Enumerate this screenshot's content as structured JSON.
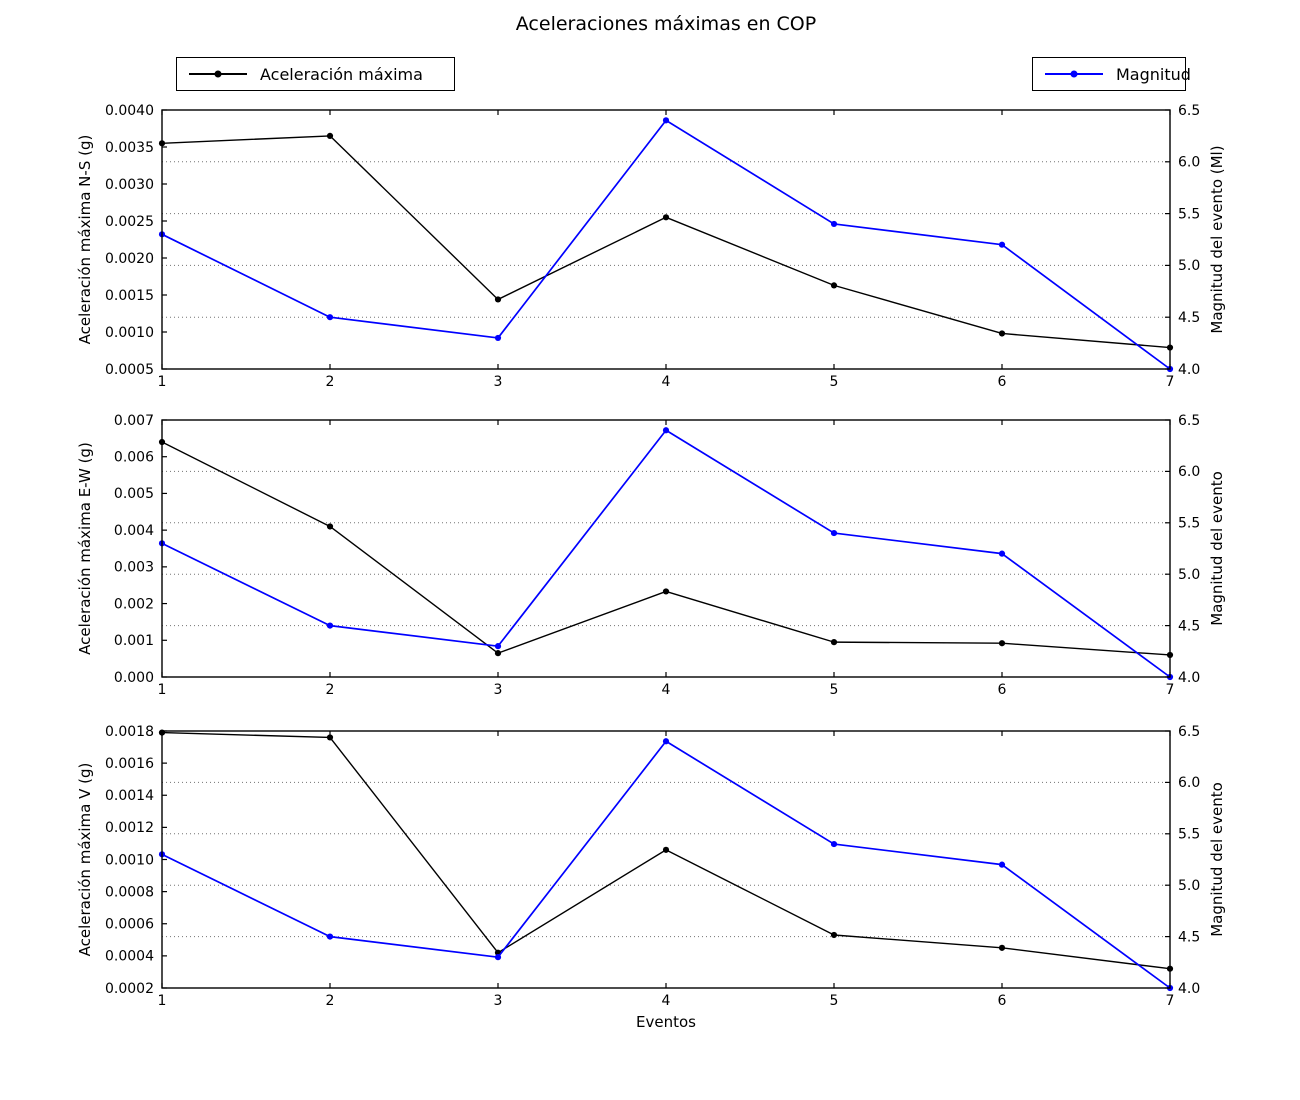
{
  "title": "Aceleraciones máximas en COP",
  "xlabel": "Eventos",
  "legend": {
    "accel_label": "Aceleración máxima",
    "magnitud_label": "Magnitud"
  },
  "colors": {
    "accel": "#000000",
    "magnitud": "#0000ff",
    "grid": "#000000"
  },
  "chart_data": [
    {
      "id": "ns",
      "type": "line",
      "x": [
        1,
        2,
        3,
        4,
        5,
        6,
        7
      ],
      "xtick_labels": [
        "1",
        "2",
        "3",
        "4",
        "5",
        "6",
        "7"
      ],
      "ylabel": "Aceleración máxima N-S (g)",
      "y2label": "Magnitud del evento (Ml)",
      "ylim": [
        0.0005,
        0.004
      ],
      "yticks": [
        0.0005,
        0.001,
        0.0015,
        0.002,
        0.0025,
        0.003,
        0.0035,
        0.004
      ],
      "ytick_labels": [
        "0.0005",
        "0.0010",
        "0.0015",
        "0.0020",
        "0.0025",
        "0.0030",
        "0.0035",
        "0.0040"
      ],
      "y2lim": [
        4.0,
        6.5
      ],
      "y2ticks": [
        4.0,
        4.5,
        5.0,
        5.5,
        6.0,
        6.5
      ],
      "y2tick_labels": [
        "4.0",
        "4.5",
        "5.0",
        "5.5",
        "6.0",
        "6.5"
      ],
      "grid_y2": [
        4.5,
        5.0,
        5.5,
        6.0
      ],
      "series": [
        {
          "name": "Aceleración máxima",
          "axis": "left",
          "color": "#000000",
          "values": [
            0.00355,
            0.00365,
            0.00144,
            0.00255,
            0.00163,
            0.00098,
            0.00079
          ]
        },
        {
          "name": "Magnitud",
          "axis": "right",
          "color": "#0000ff",
          "values": [
            5.3,
            4.5,
            4.3,
            6.4,
            5.4,
            5.2,
            4.0
          ]
        }
      ]
    },
    {
      "id": "ew",
      "type": "line",
      "x": [
        1,
        2,
        3,
        4,
        5,
        6,
        7
      ],
      "xtick_labels": [
        "1",
        "2",
        "3",
        "4",
        "5",
        "6",
        "7"
      ],
      "ylabel": "Aceleración máxima E-W (g)",
      "y2label": "Magnitud del evento",
      "ylim": [
        0.0,
        0.007
      ],
      "yticks": [
        0.0,
        0.001,
        0.002,
        0.003,
        0.004,
        0.005,
        0.006,
        0.007
      ],
      "ytick_labels": [
        "0.000",
        "0.001",
        "0.002",
        "0.003",
        "0.004",
        "0.005",
        "0.006",
        "0.007"
      ],
      "y2lim": [
        4.0,
        6.5
      ],
      "y2ticks": [
        4.0,
        4.5,
        5.0,
        5.5,
        6.0,
        6.5
      ],
      "y2tick_labels": [
        "4.0",
        "4.5",
        "5.0",
        "5.5",
        "6.0",
        "6.5"
      ],
      "grid_y2": [
        4.5,
        5.0,
        5.5,
        6.0
      ],
      "series": [
        {
          "name": "Aceleración máxima",
          "axis": "left",
          "color": "#000000",
          "values": [
            0.0064,
            0.0041,
            0.00065,
            0.00233,
            0.00095,
            0.00092,
            0.0006
          ]
        },
        {
          "name": "Magnitud",
          "axis": "right",
          "color": "#0000ff",
          "values": [
            5.3,
            4.5,
            4.3,
            6.4,
            5.4,
            5.2,
            4.0
          ]
        }
      ]
    },
    {
      "id": "v",
      "type": "line",
      "x": [
        1,
        2,
        3,
        4,
        5,
        6,
        7
      ],
      "xtick_labels": [
        "1",
        "2",
        "3",
        "4",
        "5",
        "6",
        "7"
      ],
      "ylabel": "Aceleración máxima V (g)",
      "y2label": "Magnitud del evento",
      "ylim": [
        0.0002,
        0.0018
      ],
      "yticks": [
        0.0002,
        0.0004,
        0.0006,
        0.0008,
        0.001,
        0.0012,
        0.0014,
        0.0016,
        0.0018
      ],
      "ytick_labels": [
        "0.0002",
        "0.0004",
        "0.0006",
        "0.0008",
        "0.0010",
        "0.0012",
        "0.0014",
        "0.0016",
        "0.0018"
      ],
      "y2lim": [
        4.0,
        6.5
      ],
      "y2ticks": [
        4.0,
        4.5,
        5.0,
        5.5,
        6.0,
        6.5
      ],
      "y2tick_labels": [
        "4.0",
        "4.5",
        "5.0",
        "5.5",
        "6.0",
        "6.5"
      ],
      "grid_y2": [
        4.5,
        5.0,
        5.5,
        6.0
      ],
      "series": [
        {
          "name": "Aceleración máxima",
          "axis": "left",
          "color": "#000000",
          "values": [
            0.00179,
            0.00176,
            0.00042,
            0.00106,
            0.00053,
            0.00045,
            0.00032
          ]
        },
        {
          "name": "Magnitud",
          "axis": "right",
          "color": "#0000ff",
          "values": [
            5.3,
            4.5,
            4.3,
            6.4,
            5.4,
            5.2,
            4.0
          ]
        }
      ]
    }
  ]
}
